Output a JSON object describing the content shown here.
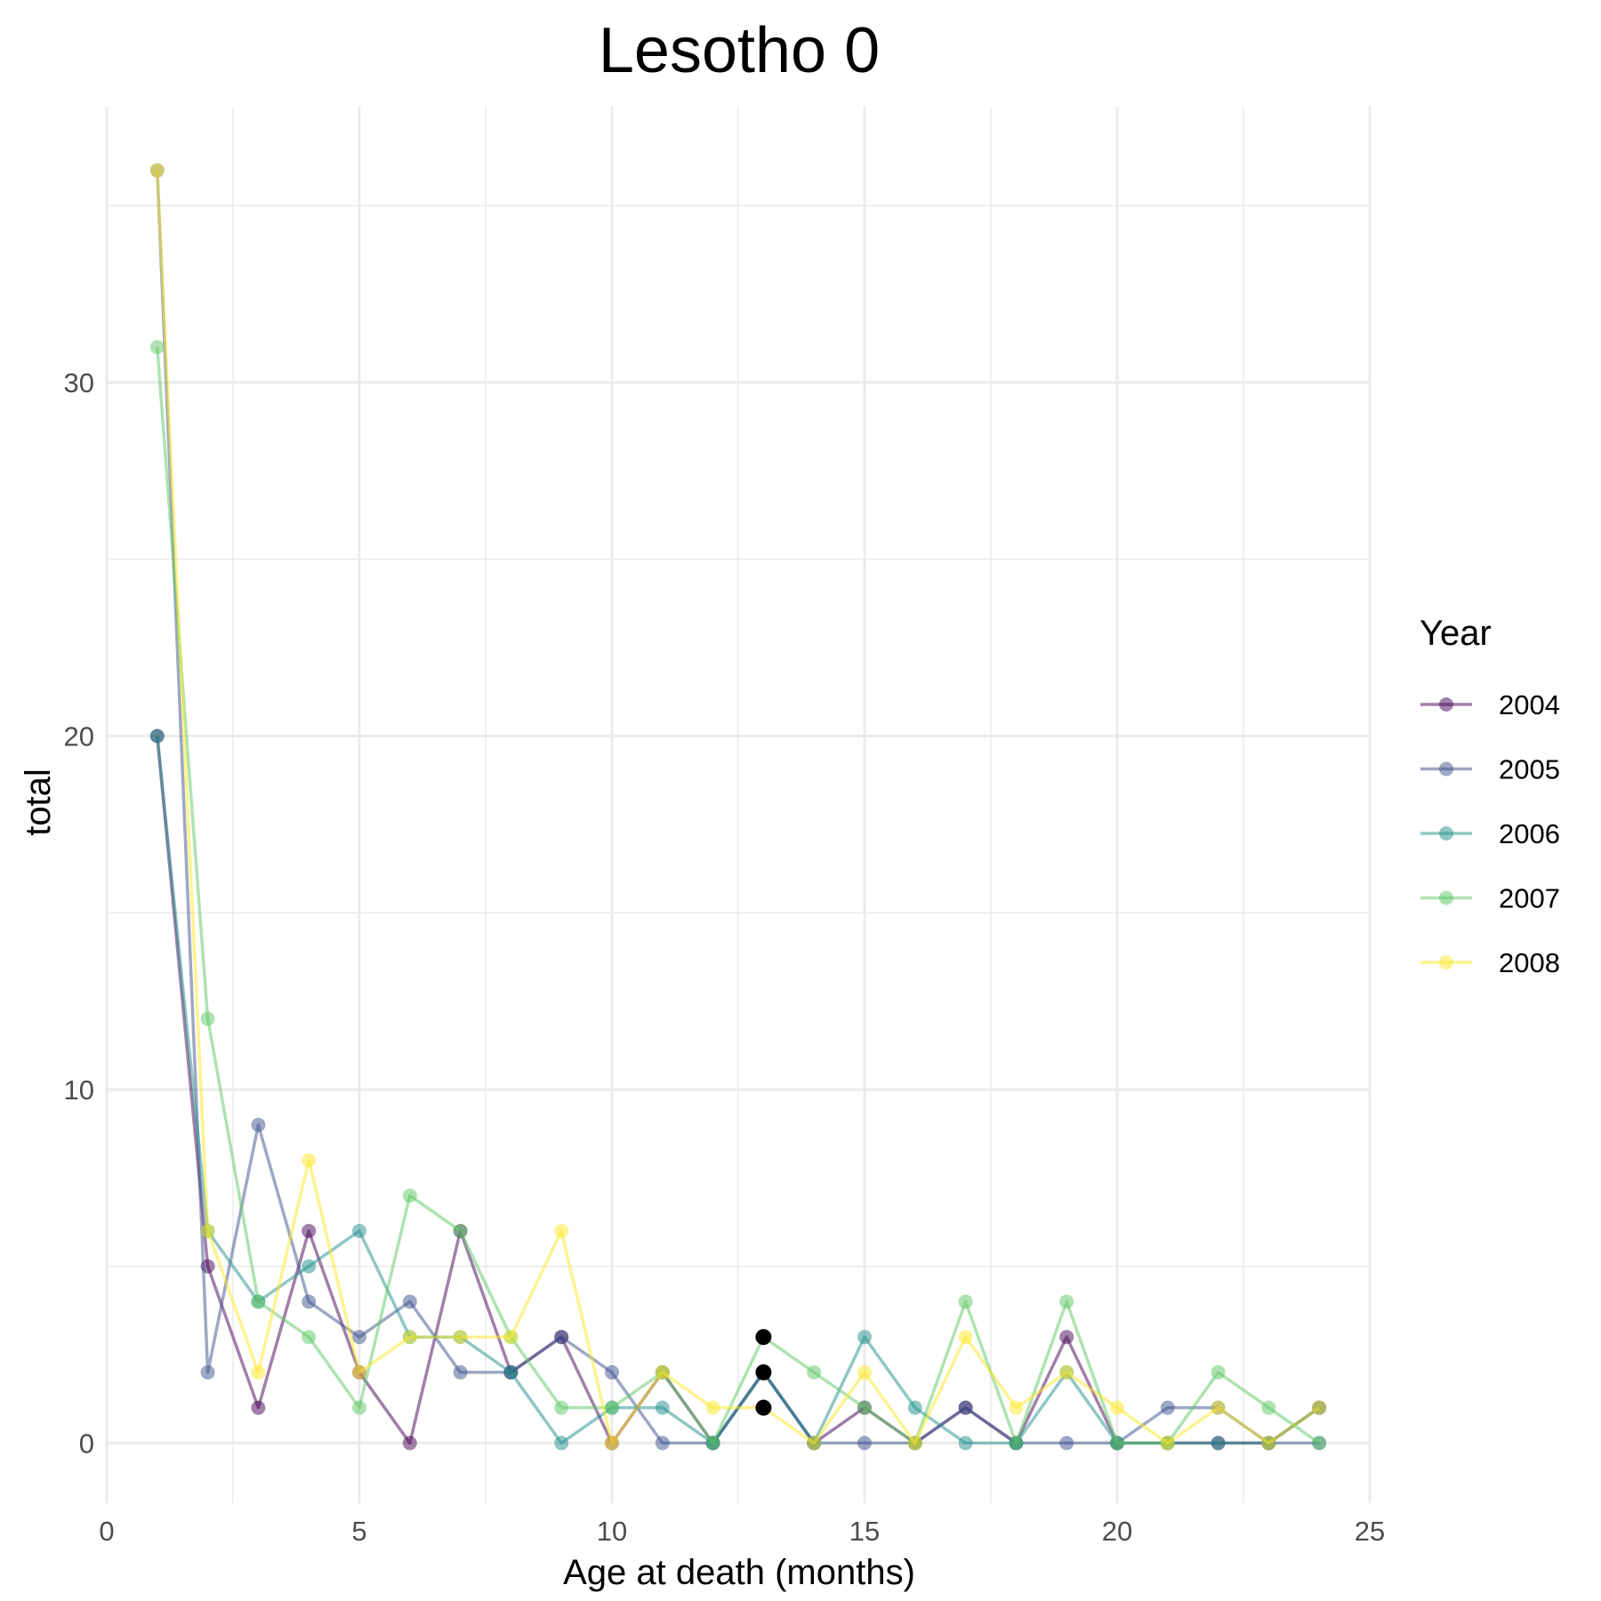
{
  "chart_data": {
    "type": "line",
    "title": "Lesotho 0",
    "xlabel": "Age at death (months)",
    "ylabel": "total",
    "xlim": [
      0,
      25
    ],
    "ylim": [
      -1.7,
      37.8
    ],
    "x_ticks": [
      0,
      5,
      10,
      15,
      20,
      25
    ],
    "y_ticks": [
      0,
      10,
      20,
      30
    ],
    "grid": true,
    "legend": {
      "title": "Year",
      "position": "right"
    },
    "x": [
      1,
      2,
      3,
      4,
      5,
      6,
      7,
      8,
      9,
      10,
      11,
      12,
      13,
      14,
      15,
      16,
      17,
      18,
      19,
      20,
      21,
      22,
      23,
      24
    ],
    "series": [
      {
        "name": "2004",
        "color": "#440154",
        "values": [
          20,
          5,
          1,
          6,
          2,
          0,
          6,
          2,
          3,
          0,
          2,
          0,
          2,
          0,
          1,
          0,
          1,
          0,
          3,
          0,
          0,
          0,
          0,
          1
        ]
      },
      {
        "name": "2005",
        "color": "#3b528b",
        "values": [
          36,
          2,
          9,
          4,
          3,
          4,
          2,
          2,
          3,
          2,
          0,
          0,
          2,
          0,
          0,
          0,
          1,
          0,
          0,
          0,
          1,
          1,
          0,
          0
        ]
      },
      {
        "name": "2006",
        "color": "#21908c",
        "values": [
          20,
          6,
          4,
          5,
          6,
          3,
          3,
          2,
          0,
          1,
          1,
          0,
          2,
          0,
          3,
          1,
          0,
          0,
          2,
          0,
          0,
          0,
          0,
          1
        ]
      },
      {
        "name": "2007",
        "color": "#5dc863",
        "values": [
          31,
          12,
          4,
          3,
          1,
          7,
          6,
          3,
          1,
          1,
          2,
          0,
          3,
          2,
          1,
          0,
          4,
          0,
          4,
          0,
          0,
          2,
          1,
          0
        ]
      },
      {
        "name": "2008",
        "color": "#fde725",
        "values": [
          36,
          6,
          2,
          8,
          2,
          3,
          3,
          3,
          6,
          0,
          2,
          1,
          1,
          0,
          2,
          0,
          3,
          1,
          2,
          1,
          0,
          1,
          0,
          1
        ]
      }
    ],
    "highlight_points": [
      {
        "x": 13,
        "y": 3
      },
      {
        "x": 13,
        "y": 2
      },
      {
        "x": 13,
        "y": 1
      }
    ]
  }
}
